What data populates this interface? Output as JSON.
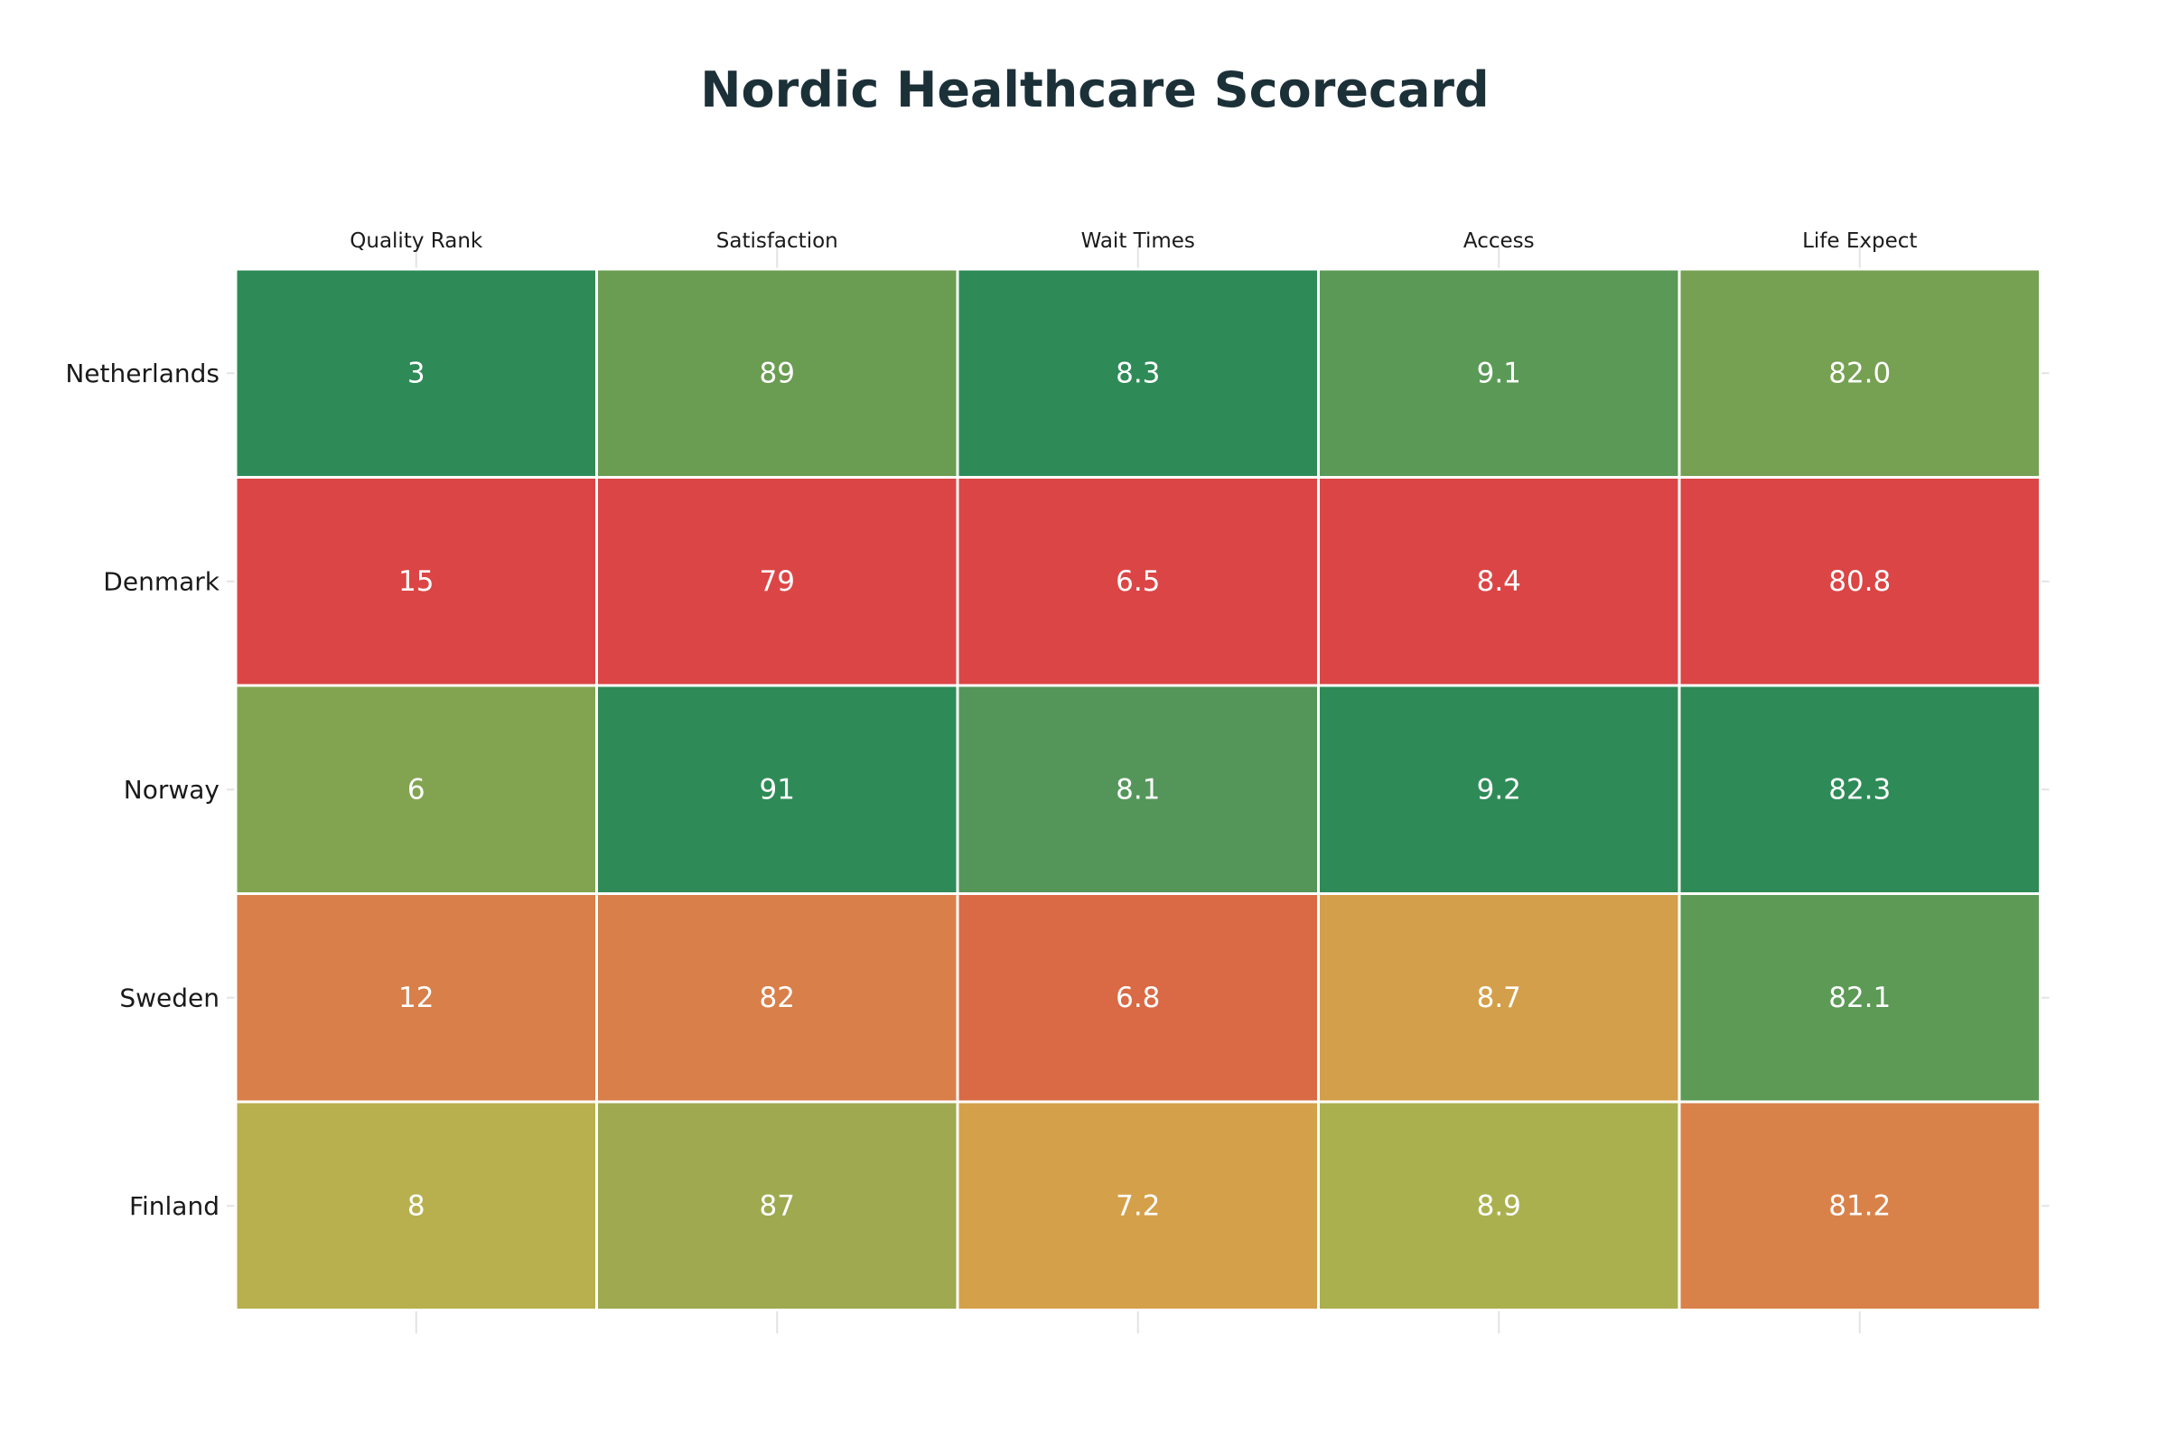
{
  "chart_data": {
    "type": "heatmap",
    "title": "Nordic Healthcare Scorecard",
    "columns": [
      "Quality Rank",
      "Satisfaction",
      "Wait Times",
      "Access",
      "Life Expect"
    ],
    "rows": [
      "Netherlands",
      "Denmark",
      "Norway",
      "Sweden",
      "Finland"
    ],
    "values": [
      [
        "3",
        "89",
        "8.3",
        "9.1",
        "82.0"
      ],
      [
        "15",
        "79",
        "6.5",
        "8.4",
        "80.8"
      ],
      [
        "6",
        "91",
        "8.1",
        "9.2",
        "82.3"
      ],
      [
        "12",
        "82",
        "6.8",
        "8.7",
        "82.1"
      ],
      [
        "8",
        "87",
        "7.2",
        "8.9",
        "81.2"
      ]
    ],
    "cell_colors": [
      [
        "#2e8b57",
        "#6a9c52",
        "#2e8b57",
        "#5a9a56",
        "#76a052"
      ],
      [
        "#dc4545",
        "#dc4545",
        "#dc4545",
        "#dc4545",
        "#dc4545"
      ],
      [
        "#82a450",
        "#2e8b57",
        "#54965a",
        "#2e8b57",
        "#2e8b57"
      ],
      [
        "#d87f4a",
        "#d87f4a",
        "#d96a45",
        "#d49f4a",
        "#5c9a56"
      ],
      [
        "#b8b04e",
        "#9ea950",
        "#d4a04a",
        "#abb04f",
        "#d8824a"
      ]
    ],
    "color_scale": "red-yellow-green",
    "grid": true,
    "legend": "none"
  }
}
